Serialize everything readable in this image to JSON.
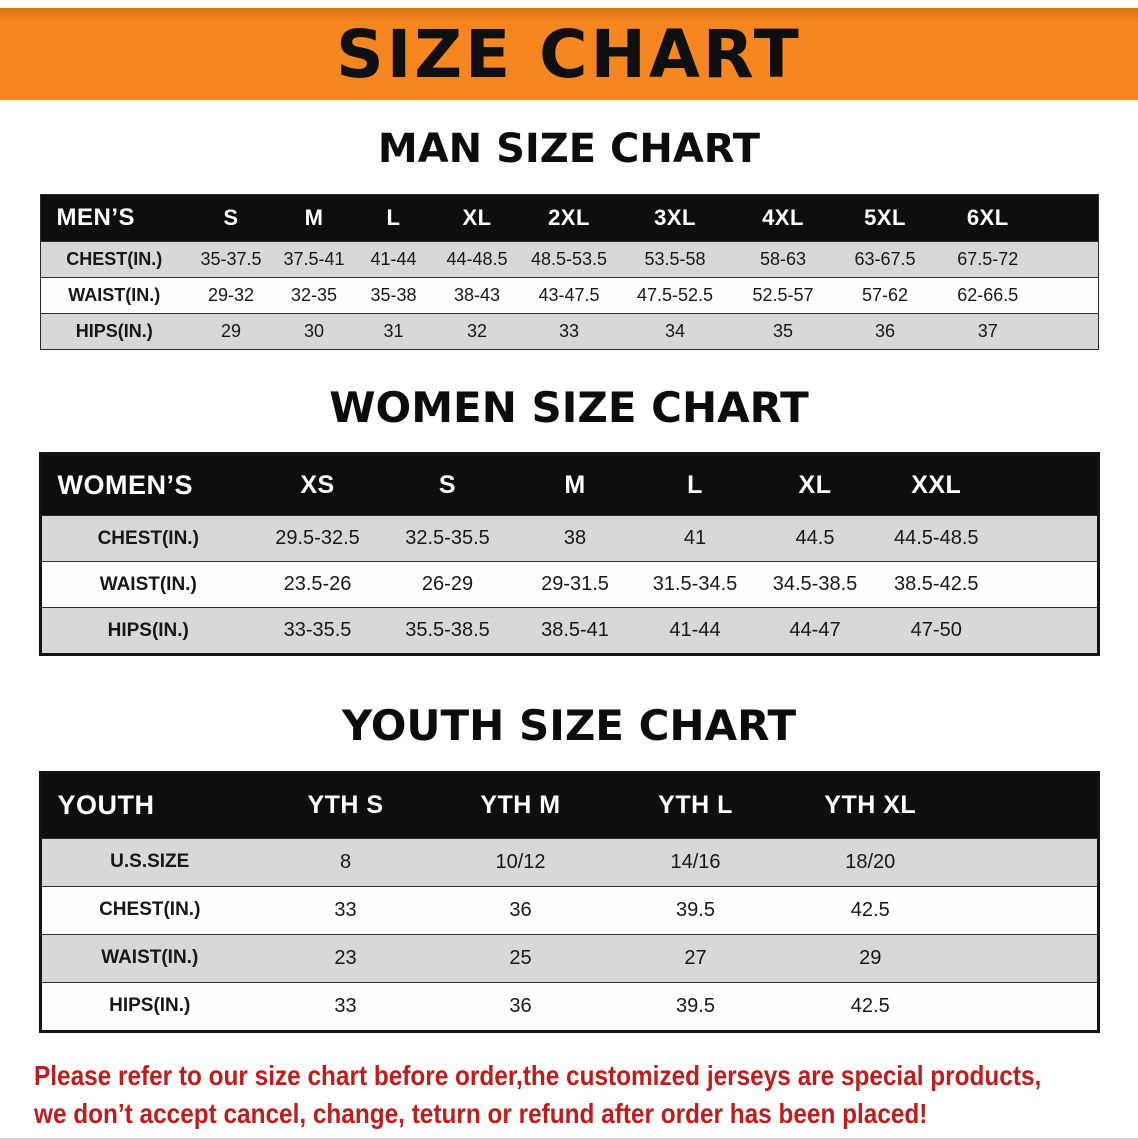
{
  "banner": {
    "title": "SIZE CHART",
    "bg_color": "#f6861f",
    "text_color": "#0f0f0f"
  },
  "colors": {
    "table_header_black": "#0e0e0e",
    "row_shade_gray": "#d8d8d8",
    "disclaimer_red": "#c21b1b"
  },
  "sections": {
    "men": {
      "heading": "MAN SIZE CHART",
      "table": {
        "header": [
          "MEN’S",
          "S",
          "M",
          "L",
          "XL",
          "2XL",
          "3XL",
          "4XL",
          "5XL",
          "6XL"
        ],
        "rows": [
          [
            "CHEST(IN.)",
            "35-37.5",
            "37.5-41",
            "41-44",
            "44-48.5",
            "48.5-53.5",
            "53.5-58",
            "58-63",
            "63-67.5",
            "67.5-72"
          ],
          [
            "WAIST(IN.)",
            "29-32",
            "32-35",
            "35-38",
            "38-43",
            "43-47.5",
            "47.5-52.5",
            "52.5-57",
            "57-62",
            "62-66.5"
          ],
          [
            "HIPS(IN.)",
            "29",
            "30",
            "31",
            "32",
            "33",
            "34",
            "35",
            "36",
            "37"
          ]
        ]
      }
    },
    "women": {
      "heading": "WOMEN SIZE CHART",
      "table": {
        "header": [
          "WOMEN’S",
          "XS",
          "S",
          "M",
          "L",
          "XL",
          "XXL"
        ],
        "rows": [
          [
            "CHEST(IN.)",
            "29.5-32.5",
            "32.5-35.5",
            "38",
            "41",
            "44.5",
            "44.5-48.5"
          ],
          [
            "WAIST(IN.)",
            "23.5-26",
            "26-29",
            "29-31.5",
            "31.5-34.5",
            "34.5-38.5",
            "38.5-42.5"
          ],
          [
            "HIPS(IN.)",
            "33-35.5",
            "35.5-38.5",
            "38.5-41",
            "41-44",
            "44-47",
            "47-50"
          ]
        ]
      }
    },
    "youth": {
      "heading": "YOUTH SIZE CHART",
      "table": {
        "header": [
          "YOUTH",
          "YTH S",
          "YTH M",
          "YTH L",
          "YTH XL"
        ],
        "rows": [
          [
            "U.S.SIZE",
            "8",
            "10/12",
            "14/16",
            "18/20"
          ],
          [
            "CHEST(IN.)",
            "33",
            "36",
            "39.5",
            "42.5"
          ],
          [
            "WAIST(IN.)",
            "23",
            "25",
            "27",
            "29"
          ],
          [
            "HIPS(IN.)",
            "33",
            "36",
            "39.5",
            "42.5"
          ]
        ]
      }
    }
  },
  "disclaimer": {
    "color": "#c21b1b",
    "line1": "Please refer to our size chart before order,the customized jerseys are special products,",
    "line2": "we don’t accept cancel, change, teturn or refund after order has been placed!"
  }
}
